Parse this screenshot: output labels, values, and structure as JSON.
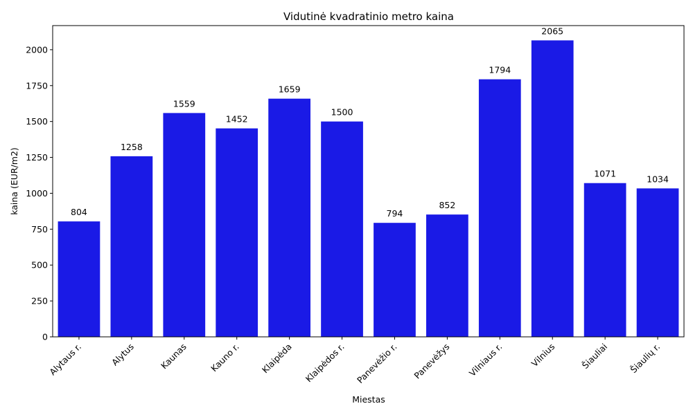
{
  "chart_data": {
    "type": "bar",
    "title": "Vidutinė kvadratinio metro kaina",
    "xlabel": "Miestas",
    "ylabel": "kaina (EUR/m2)",
    "categories": [
      "Alytaus r.",
      "Alytus",
      "Kaunas",
      "Kauno r.",
      "Klaipėda",
      "Klaipėdos r.",
      "Panevėžio r.",
      "Panevėžys",
      "Vilniaus r.",
      "Vilnius",
      "Šiauliai",
      "Šiaulių r."
    ],
    "values": [
      804,
      1258,
      1559,
      1452,
      1659,
      1500,
      794,
      852,
      1794,
      2065,
      1071,
      1034
    ],
    "data_labels": [
      "804",
      "1258",
      "1559",
      "1452",
      "1659",
      "1500",
      "794",
      "852",
      "1794",
      "2065",
      "1071",
      "1034"
    ],
    "yticks": [
      0,
      250,
      500,
      750,
      1000,
      1250,
      1500,
      1750,
      2000
    ],
    "ytick_labels": [
      "0",
      "250",
      "500",
      "750",
      "1000",
      "1250",
      "1500",
      "1750",
      "2000"
    ],
    "ylim": [
      0,
      2168
    ],
    "bar_color": "#1a1ae6",
    "grid": false,
    "legend": "none"
  }
}
